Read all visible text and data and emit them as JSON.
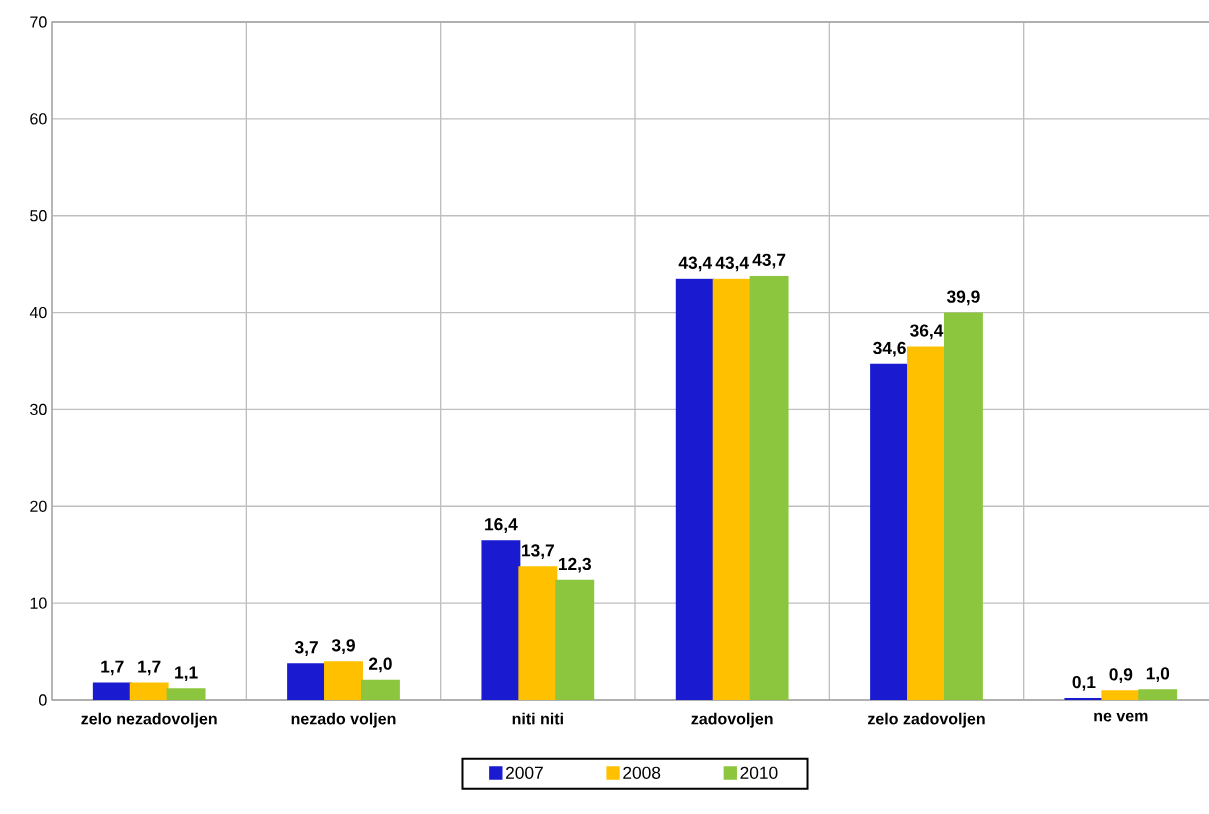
{
  "chart_data": {
    "type": "bar",
    "categories": [
      "zelo nezadovoljen",
      "nezado voljen",
      "niti niti",
      "zadovoljen",
      "zelo zadovoljen",
      "ne vem"
    ],
    "series": [
      {
        "name": "2007",
        "color": "#1a1ad0",
        "values": [
          1.7,
          3.7,
          16.4,
          43.4,
          34.6,
          0.1
        ],
        "value_labels": [
          "1,7",
          "3,7",
          "16,4",
          "43,4",
          "34,6",
          "0,1"
        ]
      },
      {
        "name": "2008",
        "color": "#ffc000",
        "values": [
          1.7,
          3.9,
          13.7,
          43.4,
          36.4,
          0.9
        ],
        "value_labels": [
          "1,7",
          "3,9",
          "13,7",
          "43,4",
          "36,4",
          "0,9"
        ]
      },
      {
        "name": "2010",
        "color": "#8cc63f",
        "values": [
          1.1,
          2.0,
          12.3,
          43.7,
          39.9,
          1.0
        ],
        "value_labels": [
          "1,1",
          "2,0",
          "12,3",
          "43,7",
          "39,9",
          "1,0"
        ]
      }
    ],
    "ylim": [
      0,
      70
    ],
    "yticks": [
      0,
      10,
      20,
      30,
      40,
      50,
      60,
      70
    ],
    "grid": true,
    "legend": "bottom"
  }
}
